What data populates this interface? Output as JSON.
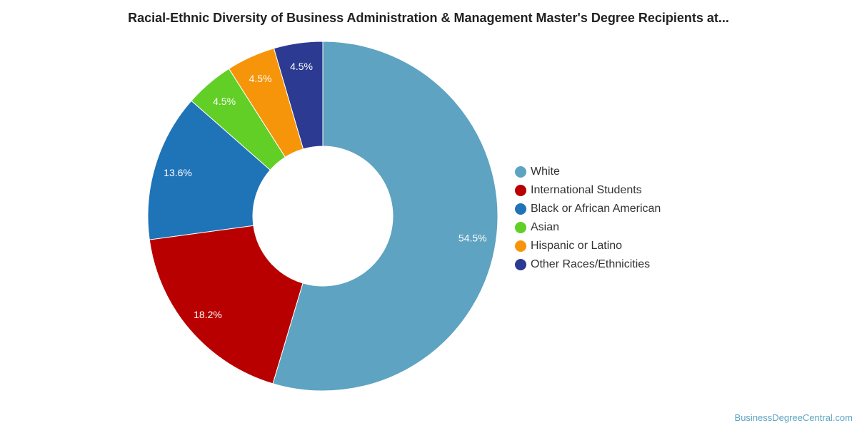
{
  "title": "Racial-Ethnic Diversity of Business Administration & Management Master's Degree Recipients at...",
  "chart_data": {
    "type": "pie",
    "variant": "donut",
    "title": "Racial-Ethnic Diversity of Business Administration & Management Master's Degree Recipients at...",
    "unit": "%",
    "legend_position": "right",
    "slices": [
      {
        "name": "White",
        "value": 54.5,
        "label": "54.5%",
        "color": "#5ea3c1"
      },
      {
        "name": "International Students",
        "value": 18.2,
        "label": "18.2%",
        "color": "#b90000"
      },
      {
        "name": "Black or African American",
        "value": 13.6,
        "label": "13.6%",
        "color": "#1f73b7"
      },
      {
        "name": "Asian",
        "value": 4.5,
        "label": "4.5%",
        "color": "#61cf25"
      },
      {
        "name": "Hispanic or Latino",
        "value": 4.5,
        "label": "4.5%",
        "color": "#f7950a"
      },
      {
        "name": "Other Races/Ethnicities",
        "value": 4.5,
        "label": "4.5%",
        "color": "#2c3a92"
      }
    ]
  },
  "credit": "BusinessDegreeCentral.com"
}
